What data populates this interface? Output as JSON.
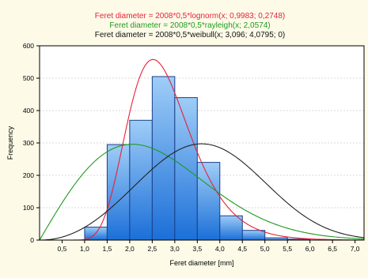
{
  "chart_data": {
    "type": "bar",
    "title_lines": [
      {
        "text": "Feret diameter = 2008*0,5*lognorm(x; 0,9983; 0,2748)",
        "color": "#e8203a"
      },
      {
        "text": "Feret diameter = 2008*0,5*rayleigh(x; 2,0574)",
        "color": "#1f9a1f"
      },
      {
        "text": "Feret diameter = 2008*0,5*weibull(x; 3,096; 4,0795; 0)",
        "color": "#111111"
      }
    ],
    "xlabel": "Feret diameter [mm]",
    "ylabel": "Frequency",
    "xlim": [
      0,
      7.2
    ],
    "ylim": [
      0,
      600
    ],
    "x_ticks": [
      "0,5",
      "1,0",
      "1,5",
      "2,0",
      "2,5",
      "3,0",
      "3,5",
      "4,0",
      "4,5",
      "5,0",
      "5,5",
      "6,0",
      "6,5",
      "7,0"
    ],
    "y_ticks": [
      "0",
      "100",
      "200",
      "300",
      "400",
      "500",
      "600"
    ],
    "bin_width": 0.5,
    "bins": [
      {
        "start": 1.0,
        "value": 40
      },
      {
        "start": 1.5,
        "value": 295
      },
      {
        "start": 2.0,
        "value": 370
      },
      {
        "start": 2.5,
        "value": 505
      },
      {
        "start": 3.0,
        "value": 440
      },
      {
        "start": 3.5,
        "value": 240
      },
      {
        "start": 4.0,
        "value": 75
      },
      {
        "start": 4.5,
        "value": 30
      },
      {
        "start": 5.0,
        "value": 7
      },
      {
        "start": 5.5,
        "value": 3
      }
    ],
    "curves": [
      {
        "dist": "lognorm",
        "params": [
          0.9983,
          0.2748
        ],
        "color": "#e8203a"
      },
      {
        "dist": "rayleigh",
        "params": [
          2.0574
        ],
        "color": "#1f9a1f"
      },
      {
        "dist": "weibull",
        "params": [
          3.096,
          4.0795,
          0
        ],
        "color": "#222222"
      }
    ],
    "scale": 1004,
    "colors": {
      "bar_fill_top": "#9fcdf7",
      "bar_fill_bottom": "#1b6fd8",
      "bar_stroke": "#1a3f8a",
      "plot_bg": "#ffffff",
      "page_bg": "#fdfbe8"
    }
  }
}
